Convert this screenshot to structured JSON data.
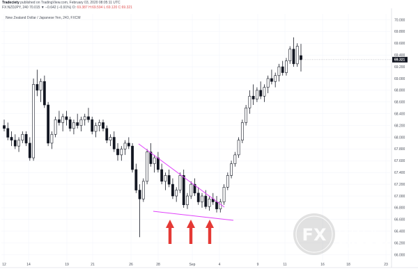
{
  "header": {
    "publisher": "Tradeciety",
    "published_text": "published on TradingView.com, February 03, 2020 08:05:11 UTC",
    "symbol_line": "FX:NZDJPY, 240  70.015 ▼ −0.642 (−0.91%)  O:",
    "ohlc_vals": [
      "69.387",
      "H:69.594",
      "L:69.120",
      "C:69.321"
    ]
  },
  "subtitle": "New Zealand Dollar / Japanese Yen, 240, FXCM",
  "colors": {
    "candle": "#131722",
    "trendline": "#e040fb",
    "arrow": "#e53935",
    "price_tag": "#131722"
  },
  "watermark": {
    "logo": "FX",
    "cn": "酷外汇",
    "en": "FXCOOL"
  },
  "chart_data": {
    "type": "candlestick",
    "title": "New Zealand Dollar / Japanese Yen, 240, FXCM",
    "x_tick_labels": [
      "12",
      "14",
      "19",
      "21",
      "26",
      "28",
      "Sep",
      "4",
      "9",
      "11",
      "16",
      "18",
      "23"
    ],
    "y_tick_labels": [
      "66.000",
      "66.200",
      "66.400",
      "66.600",
      "66.800",
      "67.000",
      "67.200",
      "67.400",
      "67.600",
      "67.800",
      "68.000",
      "68.200",
      "68.400",
      "68.600",
      "68.800",
      "69.000",
      "69.200",
      "69.400",
      "69.600",
      "69.800",
      "70.000"
    ],
    "ylim": [
      65.9,
      70.1
    ],
    "last_price": "69.321",
    "candles": [
      [
        68.2,
        68.3,
        68.1,
        68.15
      ],
      [
        68.15,
        68.25,
        67.95,
        68.0
      ],
      [
        68.0,
        68.1,
        67.85,
        67.95
      ],
      [
        67.95,
        68.05,
        67.8,
        67.85
      ],
      [
        67.85,
        68.0,
        67.75,
        67.95
      ],
      [
        67.95,
        68.1,
        67.9,
        68.05
      ],
      [
        68.05,
        68.1,
        67.85,
        67.9
      ],
      [
        67.9,
        68.0,
        67.6,
        67.65
      ],
      [
        67.65,
        69.0,
        67.6,
        68.9
      ],
      [
        68.9,
        69.15,
        68.7,
        68.8
      ],
      [
        68.8,
        69.0,
        68.6,
        68.95
      ],
      [
        68.95,
        69.05,
        68.5,
        68.55
      ],
      [
        68.55,
        68.6,
        67.85,
        67.9
      ],
      [
        67.9,
        68.1,
        67.8,
        68.05
      ],
      [
        68.05,
        68.35,
        68.0,
        68.3
      ],
      [
        68.3,
        68.45,
        68.2,
        68.25
      ],
      [
        68.25,
        68.4,
        68.1,
        68.35
      ],
      [
        68.35,
        68.45,
        68.2,
        68.3
      ],
      [
        68.3,
        68.35,
        68.1,
        68.15
      ],
      [
        68.15,
        68.3,
        68.05,
        68.25
      ],
      [
        68.25,
        68.4,
        68.15,
        68.2
      ],
      [
        68.2,
        68.35,
        68.1,
        68.3
      ],
      [
        68.3,
        68.4,
        68.2,
        68.35
      ],
      [
        68.35,
        68.5,
        68.25,
        68.3
      ],
      [
        68.3,
        68.35,
        68.05,
        68.1
      ],
      [
        68.1,
        68.25,
        68.0,
        68.2
      ],
      [
        68.2,
        68.3,
        68.1,
        68.25
      ],
      [
        68.25,
        68.3,
        68.1,
        68.15
      ],
      [
        68.15,
        68.2,
        67.9,
        67.95
      ],
      [
        67.95,
        68.05,
        67.85,
        68.0
      ],
      [
        68.0,
        68.1,
        67.75,
        67.8
      ],
      [
        67.8,
        67.9,
        67.6,
        67.7
      ],
      [
        67.7,
        67.85,
        67.6,
        67.8
      ],
      [
        67.8,
        67.95,
        67.7,
        67.9
      ],
      [
        67.9,
        68.0,
        67.8,
        67.85
      ],
      [
        67.85,
        67.9,
        67.4,
        67.45
      ],
      [
        67.45,
        67.55,
        67.05,
        67.1
      ],
      [
        67.1,
        67.2,
        66.3,
        66.95
      ],
      [
        66.95,
        67.3,
        66.9,
        67.25
      ],
      [
        67.25,
        67.8,
        67.2,
        67.75
      ],
      [
        67.75,
        67.9,
        67.5,
        67.55
      ],
      [
        67.55,
        67.7,
        67.4,
        67.65
      ],
      [
        67.65,
        67.75,
        67.4,
        67.45
      ],
      [
        67.45,
        67.55,
        67.2,
        67.25
      ],
      [
        67.25,
        67.4,
        67.1,
        67.35
      ],
      [
        67.35,
        67.45,
        67.15,
        67.2
      ],
      [
        67.2,
        67.3,
        66.95,
        67.0
      ],
      [
        67.0,
        67.15,
        66.9,
        67.1
      ],
      [
        67.1,
        67.4,
        67.05,
        67.35
      ],
      [
        67.35,
        67.45,
        66.8,
        66.85
      ],
      [
        66.85,
        67.05,
        66.78,
        67.0
      ],
      [
        67.0,
        67.25,
        66.95,
        67.2
      ],
      [
        67.2,
        67.3,
        67.0,
        67.05
      ],
      [
        67.05,
        67.15,
        66.85,
        66.9
      ],
      [
        66.9,
        67.05,
        66.8,
        67.0
      ],
      [
        67.0,
        67.1,
        66.78,
        66.82
      ],
      [
        66.82,
        67.0,
        66.75,
        66.95
      ],
      [
        66.95,
        67.05,
        66.85,
        66.9
      ],
      [
        66.9,
        67.0,
        66.72,
        66.78
      ],
      [
        66.78,
        66.95,
        66.72,
        66.9
      ],
      [
        66.9,
        67.2,
        66.85,
        67.15
      ],
      [
        67.15,
        67.4,
        67.1,
        67.35
      ],
      [
        67.35,
        67.6,
        67.3,
        67.55
      ],
      [
        67.55,
        67.75,
        67.5,
        67.7
      ],
      [
        67.7,
        68.0,
        67.65,
        67.95
      ],
      [
        67.95,
        68.3,
        67.9,
        68.25
      ],
      [
        68.25,
        68.55,
        68.2,
        68.5
      ],
      [
        68.5,
        68.8,
        68.4,
        68.7
      ],
      [
        68.7,
        68.9,
        68.55,
        68.65
      ],
      [
        68.65,
        68.85,
        68.6,
        68.8
      ],
      [
        68.8,
        68.95,
        68.65,
        68.7
      ],
      [
        68.7,
        68.9,
        68.6,
        68.85
      ],
      [
        68.85,
        69.05,
        68.75,
        69.0
      ],
      [
        69.0,
        69.15,
        68.9,
        68.95
      ],
      [
        68.95,
        69.1,
        68.85,
        69.05
      ],
      [
        69.05,
        69.25,
        68.95,
        69.2
      ],
      [
        69.2,
        69.3,
        69.05,
        69.1
      ],
      [
        69.1,
        69.35,
        69.05,
        69.3
      ],
      [
        69.3,
        69.55,
        69.25,
        69.5
      ],
      [
        69.5,
        69.7,
        69.2,
        69.25
      ],
      [
        69.25,
        69.6,
        69.2,
        69.55
      ],
      [
        69.39,
        69.59,
        69.12,
        69.32
      ]
    ]
  }
}
